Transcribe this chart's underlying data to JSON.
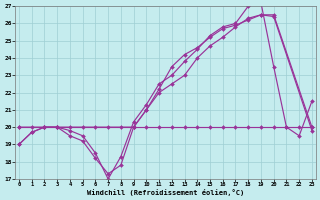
{
  "xlabel": "Windchill (Refroidissement éolien,°C)",
  "background_color": "#c5ecee",
  "grid_color": "#9fcfd4",
  "line_color": "#993399",
  "xlim": [
    -0.3,
    23.3
  ],
  "ylim": [
    17,
    27
  ],
  "yticks": [
    17,
    18,
    19,
    20,
    21,
    22,
    23,
    24,
    25,
    26,
    27
  ],
  "xticks": [
    0,
    1,
    2,
    3,
    4,
    5,
    6,
    7,
    8,
    9,
    10,
    11,
    12,
    13,
    14,
    15,
    16,
    17,
    18,
    19,
    20,
    21,
    22,
    23
  ],
  "series": [
    {
      "x": [
        0,
        1,
        2,
        3,
        4,
        5,
        6,
        7,
        8,
        9,
        10,
        11,
        12,
        13,
        14,
        15,
        16,
        17,
        18,
        19,
        20,
        21,
        22,
        23
      ],
      "y": [
        19.0,
        19.7,
        20.0,
        20.0,
        19.8,
        19.5,
        18.5,
        17.0,
        18.3,
        20.3,
        21.3,
        22.5,
        23.0,
        23.8,
        24.5,
        25.3,
        25.8,
        26.0,
        27.0,
        27.2,
        23.5,
        20.0,
        19.5,
        21.5
      ]
    },
    {
      "x": [
        0,
        2,
        3,
        9,
        10,
        11,
        12,
        13,
        14,
        15,
        16,
        17,
        18,
        19,
        20,
        23
      ],
      "y": [
        20.0,
        20.0,
        20.0,
        20.0,
        21.0,
        22.0,
        22.5,
        23.0,
        24.0,
        24.7,
        25.2,
        25.8,
        26.3,
        26.5,
        26.5,
        20.0
      ]
    },
    {
      "x": [
        0,
        1,
        2,
        3,
        4,
        5,
        6,
        7,
        8,
        9,
        10,
        11,
        12,
        13,
        14,
        15,
        16,
        17,
        18,
        19,
        20,
        23
      ],
      "y": [
        19.0,
        19.7,
        20.0,
        20.0,
        19.5,
        19.2,
        18.2,
        17.3,
        17.8,
        20.0,
        21.0,
        22.2,
        23.5,
        24.2,
        24.6,
        25.2,
        25.7,
        25.9,
        26.2,
        26.5,
        26.4,
        19.8
      ]
    },
    {
      "x": [
        0,
        1,
        2,
        3,
        4,
        5,
        6,
        7,
        8,
        9,
        10,
        11,
        12,
        13,
        14,
        15,
        16,
        17,
        18,
        19,
        20,
        21,
        22,
        23
      ],
      "y": [
        20.0,
        20.0,
        20.0,
        20.0,
        20.0,
        20.0,
        20.0,
        20.0,
        20.0,
        20.0,
        20.0,
        20.0,
        20.0,
        20.0,
        20.0,
        20.0,
        20.0,
        20.0,
        20.0,
        20.0,
        20.0,
        20.0,
        20.0,
        20.0
      ]
    }
  ],
  "marker": "D",
  "markersize": 2.0,
  "linewidth": 0.85
}
